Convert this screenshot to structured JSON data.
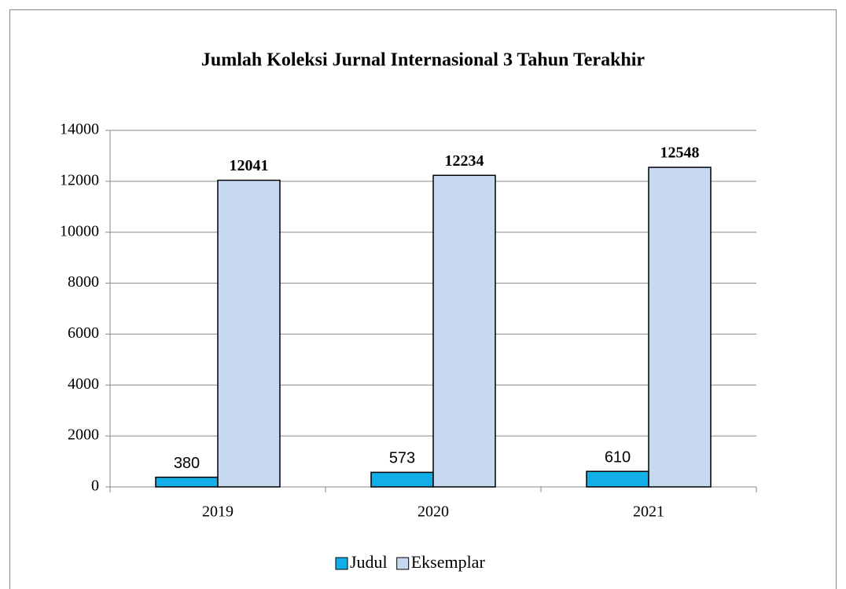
{
  "chart_data": {
    "type": "bar",
    "title": "Jumlah Koleksi Jurnal Internasional 3 Tahun Terakhir",
    "categories": [
      "2019",
      "2020",
      "2021"
    ],
    "series": [
      {
        "name": "Judul",
        "color": "#12aee8",
        "values": [
          380,
          573,
          610
        ]
      },
      {
        "name": "Eksemplar",
        "color": "#c6d9f1",
        "values": [
          12041,
          12234,
          12548
        ]
      }
    ],
    "ylim": [
      0,
      14000
    ],
    "yticks": [
      0,
      2000,
      4000,
      6000,
      8000,
      10000,
      12000,
      14000
    ],
    "grid": true,
    "legend": "bottom"
  }
}
